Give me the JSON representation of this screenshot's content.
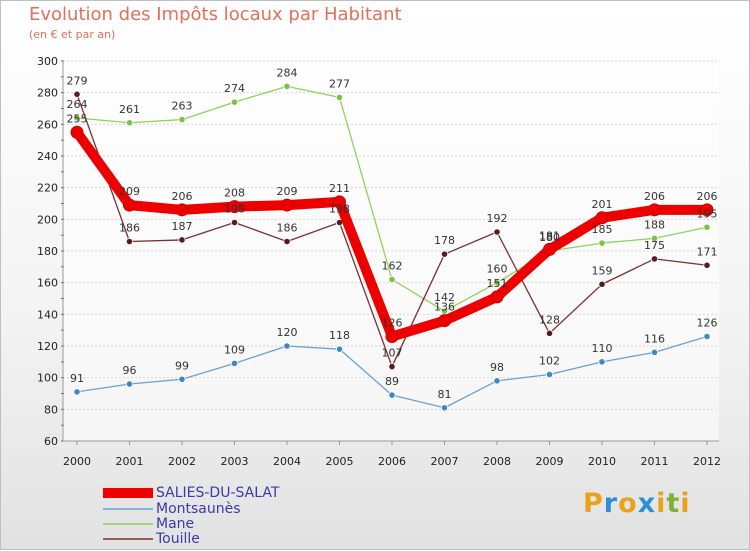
{
  "header": {
    "title": "Evolution des Impôts locaux par Habitant",
    "subtitle": "(en € et par an)"
  },
  "brand": {
    "letters": [
      "P",
      "r",
      "o",
      "x",
      "i",
      "t",
      "i"
    ],
    "colors": [
      "#e8a317",
      "#2b8fd6",
      "#e8a317",
      "#2b8fd6",
      "#e8a317",
      "#7fb13a",
      "#e8a317"
    ]
  },
  "chart_data": {
    "type": "line",
    "title": "Evolution des Impôts locaux par Habitant",
    "subtitle": "(en € et par an)",
    "xlabel": "",
    "ylabel": "",
    "categories": [
      "2000",
      "2001",
      "2002",
      "2003",
      "2004",
      "2005",
      "2006",
      "2007",
      "2008",
      "2009",
      "2010",
      "2011",
      "2012"
    ],
    "ylim": [
      60,
      300
    ],
    "yticks": [
      60,
      80,
      100,
      120,
      140,
      160,
      180,
      200,
      220,
      240,
      260,
      280,
      300
    ],
    "series": [
      {
        "name": "SALIES-DU-SALAT",
        "color": "#ee0000",
        "values": [
          255,
          209,
          206,
          208,
          209,
          211,
          126,
          136,
          151,
          181,
          201,
          206,
          206
        ]
      },
      {
        "name": "Montsaunès",
        "color": "#6ca0d0",
        "values": [
          91,
          96,
          99,
          109,
          120,
          118,
          89,
          81,
          98,
          102,
          110,
          116,
          126
        ]
      },
      {
        "name": "Mane",
        "color": "#8fd25a",
        "values": [
          264,
          261,
          263,
          274,
          284,
          277,
          162,
          142,
          160,
          180,
          185,
          188,
          195
        ]
      },
      {
        "name": "Touille",
        "color": "#7a3030",
        "values": [
          279,
          186,
          187,
          198,
          186,
          198,
          107,
          178,
          192,
          128,
          159,
          175,
          171
        ]
      }
    ]
  }
}
